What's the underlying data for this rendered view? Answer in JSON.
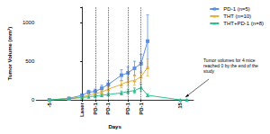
{
  "chart_data": {
    "type": "line",
    "x_label": "Days",
    "y_label": "Tumor Volume (mm³)",
    "xlim": [
      -7,
      17
    ],
    "xticks": [
      -5,
      {
        "value": 0,
        "label": "Laser"
      },
      {
        "value": 2,
        "label": "PD-1"
      },
      {
        "value": 4,
        "label": "PD-1"
      },
      {
        "value": 7,
        "label": "PD-1"
      },
      {
        "value": 9,
        "label": "PD-1"
      },
      15
    ],
    "ylim": [
      0,
      1200
    ],
    "yticks": [
      0,
      500,
      1000
    ],
    "grid": false,
    "legend": "top-right",
    "annotation": "Tumor volumes for 4 mice reached 0 by the end of the study",
    "series": [
      {
        "name": "PD-1 (n=5)",
        "color": "#5b8fe0",
        "marker": "square",
        "line_style": "solid",
        "x": [
          -5,
          -2,
          0,
          1,
          2,
          3,
          4,
          6,
          7,
          8,
          9,
          10
        ],
        "values": [
          0,
          20,
          60,
          100,
          110,
          150,
          200,
          320,
          350,
          410,
          470,
          760
        ],
        "errors": [
          0,
          5,
          15,
          25,
          30,
          40,
          50,
          70,
          80,
          90,
          120,
          340
        ]
      },
      {
        "name": "THT (n=10)",
        "color": "#e3b23c",
        "marker": "triangle",
        "line_style": "solid",
        "x": [
          -5,
          -2,
          0,
          1,
          2,
          3,
          4,
          6,
          7,
          8,
          9,
          10
        ],
        "values": [
          0,
          15,
          40,
          60,
          80,
          100,
          140,
          200,
          240,
          250,
          300,
          420
        ],
        "errors": [
          0,
          5,
          10,
          15,
          20,
          25,
          30,
          45,
          55,
          60,
          70,
          110
        ]
      },
      {
        "name": "THT+PD-1 (n=8)",
        "color": "#2fbf8f",
        "marker": "triangle",
        "line_style": "solid",
        "x": [
          -5,
          -2,
          0,
          1,
          2,
          3,
          4,
          6,
          7,
          8,
          9,
          10,
          15,
          16
        ],
        "values": [
          0,
          15,
          30,
          40,
          50,
          60,
          70,
          90,
          110,
          120,
          160,
          60,
          0,
          0
        ],
        "errors": [
          0,
          5,
          8,
          10,
          12,
          15,
          18,
          25,
          30,
          35,
          45,
          20,
          0,
          0
        ]
      }
    ]
  }
}
